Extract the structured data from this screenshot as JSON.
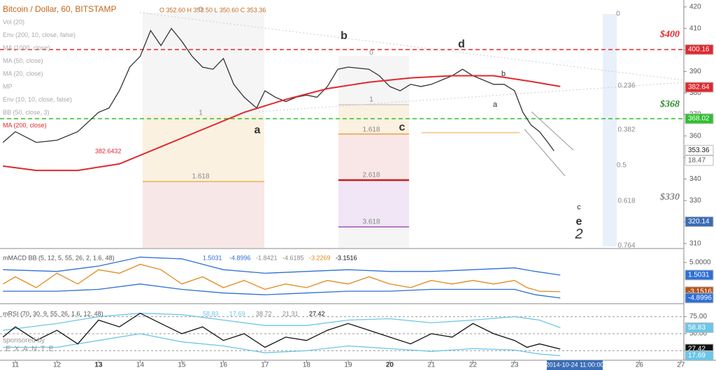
{
  "chart_data": [
    {
      "type": "line",
      "title": "Bitcoin / Dollar, 60, BITSTAMP",
      "subtitle": "O 352.60 H 353.50 L 350.60 C 353.36",
      "legend": [
        "Vol (20)",
        "Env (200, 10, close, false)",
        "MA (1000, close)",
        "MA (50, close)",
        "MA (20, close)",
        "MP",
        "Env (10, 10, close, false)",
        "BB (50, close, 3)",
        "MA (200, close)",
        "382.6432"
      ],
      "xlim": [
        10.63,
        27.07
      ],
      "ylim": [
        308,
        423.2
      ],
      "yticks": [
        420,
        410,
        400,
        390,
        380,
        370,
        360,
        350,
        340,
        330,
        320,
        310
      ],
      "series": [
        {
          "color": "#333333",
          "x": [
            10.7,
            11,
            11.5,
            12,
            12.5,
            13,
            13.25,
            13.5,
            13.75,
            14,
            14.25,
            14.5,
            14.75,
            15,
            15.25,
            15.5,
            15.75,
            16,
            16.25,
            16.5,
            16.8,
            17,
            17.25,
            17.5,
            17.75,
            18,
            18.25,
            18.5,
            18.75,
            19,
            19.5,
            19.75,
            20,
            20.25,
            20.5,
            20.75,
            21,
            21.5,
            21.75,
            22,
            22.5,
            22.75,
            23,
            23.2,
            23.4,
            23.6,
            23.8,
            23.95
          ],
          "values": [
            357,
            362,
            357,
            358,
            362,
            371,
            373,
            381,
            392,
            397,
            409,
            402,
            410,
            404,
            397,
            392,
            391,
            396,
            384,
            378,
            373,
            381,
            378,
            376,
            378,
            379,
            378,
            383,
            391,
            392,
            391,
            388,
            383,
            381,
            384,
            383,
            384,
            388,
            391,
            388,
            384,
            384,
            381,
            371,
            365,
            362,
            357,
            353
          ]
        },
        {
          "color": "#e0282e",
          "x": [
            10.7,
            11.5,
            12.5,
            13.5,
            14.5,
            15.5,
            16.5,
            17.5,
            18.5,
            19.5,
            20.5,
            21.5,
            22.5,
            23.5,
            24.1
          ],
          "values": [
            346,
            344,
            344,
            347,
            355,
            363,
            371,
            377,
            382,
            385,
            387,
            388,
            388,
            385,
            383
          ]
        }
      ],
      "price_lines": [
        {
          "value": 400.16,
          "color": "#e0282e"
        },
        {
          "value": 368.02,
          "color": "#2ec02e"
        }
      ],
      "tags": [
        {
          "value": 400.16,
          "color": "#e0282e"
        },
        {
          "value": 382.64,
          "color": "#e0282e"
        },
        {
          "value": 368.02,
          "color": "#2ec02e"
        },
        {
          "value": 353.36,
          "color": "#ffffff"
        },
        {
          "value": 320.14,
          "color": "#3a6db5"
        }
      ],
      "volume_tag": 18.47,
      "annotations": [
        "b",
        "d",
        "a",
        "c",
        "a",
        "b",
        "c",
        "e",
        "2",
        "$400",
        "$368",
        "$330",
        "0",
        "1",
        "1.618",
        "0",
        "1",
        "1.618",
        "2.618",
        "3.618",
        "0",
        "0.236",
        "0.382",
        "0.5",
        "0.618",
        "0.764"
      ],
      "grid": false
    },
    {
      "type": "line",
      "title": "mMACD BB (5, 12, 5, 55, 26, 2, 1.6, 48)",
      "readouts": [
        "1.5031",
        "-4.8996",
        "-1.8421",
        "-4.6185",
        "-3.2269",
        "-3.1516"
      ],
      "xlim": [
        10.63,
        27.07
      ],
      "ylim": [
        -5.9,
        8.5
      ],
      "yticks": [
        {
          "value": 5,
          "label": "5.0000"
        }
      ],
      "series": [
        {
          "color": "#2d6fd6",
          "x": [
            10.7,
            12,
            13,
            14,
            15,
            16,
            17,
            18,
            19,
            20,
            21,
            22,
            23,
            23.5,
            24.1
          ],
          "values": [
            3,
            2.5,
            4,
            6.5,
            6,
            3,
            2,
            2.5,
            3,
            2.5,
            2.5,
            3,
            3.5,
            2.5,
            1.5
          ]
        },
        {
          "color": "#2d6fd6",
          "x": [
            10.7,
            12,
            13,
            14,
            15,
            16,
            17,
            18,
            19,
            20,
            21,
            22,
            23,
            23.5,
            24.1
          ],
          "values": [
            -3,
            -3,
            -2.5,
            -1,
            -2.5,
            -3.5,
            -4,
            -3.5,
            -3,
            -3,
            -2.5,
            -2.5,
            -2.5,
            -4,
            -4.9
          ]
        },
        {
          "color": "#e08a1e",
          "x": [
            10.7,
            11,
            11.5,
            12,
            12.5,
            13,
            13.5,
            14,
            14.5,
            15,
            15.5,
            16,
            16.5,
            17,
            17.5,
            18,
            18.5,
            19,
            19.5,
            20,
            20.5,
            21,
            21.5,
            22,
            22.5,
            23,
            23.3,
            23.6,
            24.1
          ],
          "values": [
            -1,
            1,
            -2,
            2,
            -1,
            3,
            2,
            4.5,
            3,
            -1,
            1,
            -2,
            0,
            -2.5,
            -1,
            -2,
            0,
            -1,
            1,
            -1,
            -2,
            0,
            -1,
            0,
            -1,
            0,
            -2,
            -3,
            -3.15
          ]
        }
      ],
      "tags": [
        {
          "value": 1.5031,
          "color": "#2d6fd6"
        },
        {
          "value": -3.1516,
          "color": "#b5541b"
        },
        {
          "value": -4.8996,
          "color": "#2d6fd6"
        }
      ],
      "grid": false
    },
    {
      "type": "line",
      "title": "mRSI (70, 30, 9, 55, 26, 1.6, 12, 48)",
      "readouts": [
        "58.83",
        "17.69",
        "38.72",
        "21.31",
        "27.42"
      ],
      "xlim": [
        10.63,
        27.07
      ],
      "ylim": [
        11,
        91
      ],
      "yticks": [
        {
          "value": 75,
          "label": "75.00"
        },
        {
          "value": 50,
          "label": "50.00"
        },
        {
          "value": 25,
          "label": "25.00"
        }
      ],
      "xticks": [
        11,
        12,
        13,
        14,
        15,
        16,
        17,
        18,
        19,
        20,
        21,
        22,
        23,
        26,
        27
      ],
      "series": [
        {
          "color": "#6cc6e8",
          "x": [
            10.7,
            12,
            13,
            14,
            15,
            16,
            17,
            18,
            19,
            20,
            21,
            22,
            23,
            23.6,
            24.1
          ],
          "values": [
            55,
            65,
            75,
            80,
            78,
            70,
            62,
            62,
            70,
            72,
            66,
            70,
            75,
            70,
            58.83
          ]
        },
        {
          "color": "#6cc6e8",
          "x": [
            10.7,
            12,
            13,
            14,
            15,
            16,
            17,
            18,
            19,
            20,
            21,
            22,
            23,
            23.6,
            24.1
          ],
          "values": [
            30,
            30,
            40,
            50,
            38,
            32,
            22,
            25,
            32,
            28,
            24,
            28,
            26,
            20,
            17.69
          ]
        },
        {
          "color": "#111111",
          "x": [
            10.7,
            11,
            11.5,
            12,
            12.5,
            13,
            13.5,
            14,
            14.5,
            15,
            15.5,
            16,
            16.5,
            17,
            17.5,
            18,
            18.5,
            19,
            19.5,
            20,
            20.5,
            21,
            21.5,
            22,
            22.5,
            23,
            23.3,
            23.6,
            24.1
          ],
          "values": [
            45,
            60,
            40,
            55,
            35,
            70,
            60,
            80,
            65,
            50,
            60,
            40,
            50,
            30,
            45,
            40,
            55,
            65,
            55,
            45,
            35,
            50,
            45,
            65,
            50,
            40,
            30,
            35,
            27.42
          ]
        }
      ],
      "tags": [
        {
          "value": 58.83,
          "color": "#6cc6e8"
        },
        {
          "value": 27.42,
          "color": "#111111"
        },
        {
          "value": 17.69,
          "color": "#6cc6e8"
        }
      ],
      "grid": true,
      "date_label": "2014-10-24 11:00:00",
      "watermark": [
        "sponsored by",
        "EXANTE"
      ]
    }
  ]
}
